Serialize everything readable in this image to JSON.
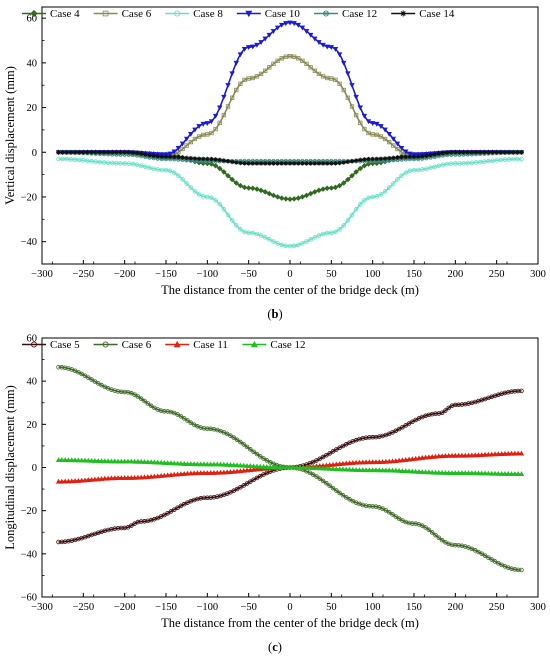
{
  "chart_data": [
    {
      "type": "line",
      "panel_label": "b",
      "xlabel": "The distance from the center of the bridge deck (m)",
      "ylabel": "Vertical displacement (mm)",
      "xlim": [
        -300,
        300
      ],
      "ylim": [
        -50,
        65
      ],
      "xticks": [
        -300,
        -250,
        -200,
        -150,
        -100,
        -50,
        0,
        50,
        100,
        150,
        200,
        250,
        300
      ],
      "yticks": [
        -40,
        -20,
        0,
        20,
        40,
        60
      ],
      "grid": false,
      "legend_position": "top",
      "series": [
        {
          "name": "Case 4",
          "color": "#2f6a1f",
          "marker": "diamond",
          "x": [
            -280,
            -200,
            -150,
            -100,
            -50,
            0,
            50,
            100,
            150,
            200,
            280
          ],
          "y": [
            0,
            0,
            -1,
            -5,
            -16,
            -21,
            -16,
            -5,
            -1,
            0,
            0
          ]
        },
        {
          "name": "Case 6",
          "color": "#8a8a55",
          "marker": "square",
          "x": [
            -280,
            -200,
            -150,
            -100,
            -50,
            0,
            50,
            100,
            150,
            200,
            280
          ],
          "y": [
            0,
            0,
            -2,
            8,
            33,
            43,
            33,
            8,
            -2,
            0,
            0
          ]
        },
        {
          "name": "Case 8",
          "color": "#66e0c8",
          "marker": "circle",
          "x": [
            -280,
            -200,
            -150,
            -100,
            -50,
            0,
            50,
            100,
            150,
            200,
            280
          ],
          "y": [
            -3,
            -5,
            -8,
            -20,
            -36,
            -42,
            -36,
            -20,
            -8,
            -5,
            -3
          ]
        },
        {
          "name": "Case 10",
          "color": "#1a1adc",
          "marker": "triangle-down",
          "x": [
            -280,
            -200,
            -150,
            -100,
            -50,
            0,
            50,
            100,
            150,
            200,
            280
          ],
          "y": [
            0,
            0,
            -1,
            13,
            47,
            58,
            47,
            13,
            -1,
            0,
            0
          ]
        },
        {
          "name": "Case 12",
          "color": "#3d8a80",
          "marker": "x-circle",
          "x": [
            -280,
            -200,
            -150,
            -100,
            -50,
            0,
            50,
            100,
            150,
            200,
            280
          ],
          "y": [
            0,
            -1,
            -3,
            -4,
            -4,
            -4,
            -4,
            -4,
            -3,
            -1,
            0
          ]
        },
        {
          "name": "Case 14",
          "color": "#111111",
          "marker": "asterisk",
          "x": [
            -280,
            -200,
            -150,
            -100,
            -50,
            0,
            50,
            100,
            150,
            200,
            280
          ],
          "y": [
            0,
            0,
            -2,
            -3,
            -5,
            -5,
            -5,
            -3,
            -2,
            0,
            0
          ]
        }
      ]
    },
    {
      "type": "line",
      "panel_label": "c",
      "xlabel": "The distance from the center of the bridge deck (m)",
      "ylabel": "Longitudinal displacement (mm)",
      "xlim": [
        -300,
        300
      ],
      "ylim": [
        -60,
        60
      ],
      "xticks": [
        -300,
        -250,
        -200,
        -150,
        -100,
        -50,
        0,
        50,
        100,
        150,
        200,
        250,
        300
      ],
      "yticks": [
        -60,
        -40,
        -20,
        0,
        20,
        40,
        60
      ],
      "grid": false,
      "legend_position": "top",
      "series": [
        {
          "name": "Case 5",
          "color": "#3a0d0d",
          "marker": "circle",
          "x": [
            -280,
            -200,
            -180,
            -100,
            0,
            100,
            180,
            200,
            280
          ],
          "y": [
            -34.5,
            -28,
            -25,
            -14,
            0,
            14,
            25,
            29,
            35.5
          ]
        },
        {
          "name": "Case 6",
          "color": "#3c6a25",
          "marker": "circle",
          "x": [
            -280,
            -200,
            -150,
            -100,
            0,
            100,
            150,
            200,
            280
          ],
          "y": [
            46.5,
            35,
            26,
            18,
            0,
            -18,
            -26,
            -36,
            -47.5
          ]
        },
        {
          "name": "Case 11",
          "color": "#e02010",
          "marker": "triangle",
          "x": [
            -280,
            -200,
            -100,
            0,
            100,
            200,
            280
          ],
          "y": [
            -6.5,
            -4.8,
            -2.5,
            0,
            2.5,
            5.5,
            6.5
          ]
        },
        {
          "name": "Case 12",
          "color": "#1fbf1f",
          "marker": "triangle",
          "x": [
            -280,
            -200,
            -100,
            0,
            100,
            200,
            280
          ],
          "y": [
            3.5,
            2.8,
            1.5,
            0,
            -1.2,
            -2.5,
            -3
          ]
        }
      ]
    }
  ]
}
